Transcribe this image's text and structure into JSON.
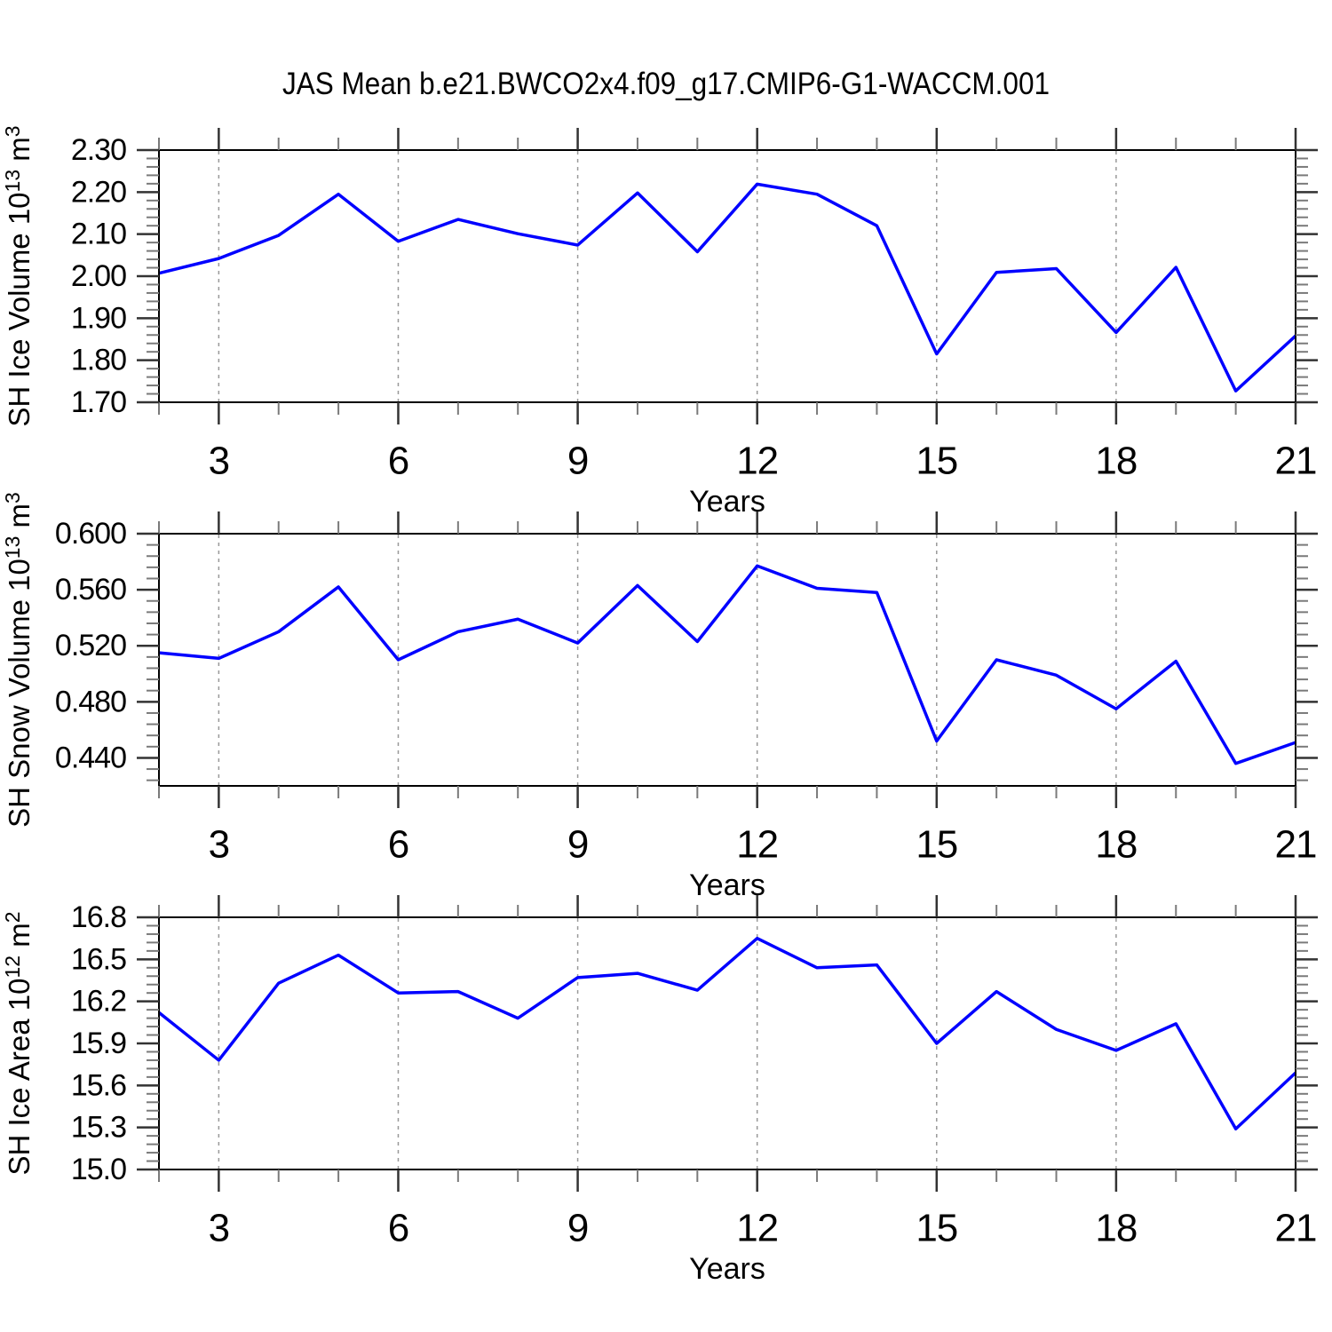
{
  "title": "JAS Mean b.e21.BWCO2x4.f09_g17.CMIP6-G1-WACCM.001",
  "line_color": "#0000ff",
  "years": [
    2,
    3,
    4,
    5,
    6,
    7,
    8,
    9,
    10,
    11,
    12,
    13,
    14,
    15,
    16,
    17,
    18,
    19,
    20,
    21
  ],
  "x_axis": {
    "label": "Years",
    "min": 2,
    "max": 21,
    "major_ticks": [
      3,
      6,
      9,
      12,
      15,
      18,
      21
    ]
  },
  "chart_data": [
    {
      "type": "line",
      "name": "sh-ice-volume",
      "ylabel_text": "SH Ice Volume 10^13 m^3",
      "ylabel": [
        {
          "t": "SH Ice Volume 10"
        },
        {
          "sup": "13"
        },
        {
          "t": " m"
        },
        {
          "sup": "3"
        }
      ],
      "xlabel": "Years",
      "ymin": 1.7,
      "ymax": 2.3,
      "yticks": [
        1.7,
        1.8,
        1.9,
        2.0,
        2.1,
        2.2,
        2.3
      ],
      "yminor_step": 0.02,
      "ydecimals": 2,
      "values": [
        2.007,
        2.042,
        2.097,
        2.195,
        2.083,
        2.135,
        2.101,
        2.074,
        2.198,
        2.058,
        2.219,
        2.195,
        2.12,
        1.815,
        2.009,
        2.018,
        1.866,
        2.021,
        1.727,
        1.858
      ]
    },
    {
      "type": "line",
      "name": "sh-snow-volume",
      "ylabel_text": "SH Snow Volume 10^13 m^3",
      "ylabel": [
        {
          "t": "SH Snow Volume 10"
        },
        {
          "sup": "13"
        },
        {
          "t": " m"
        },
        {
          "sup": "3"
        }
      ],
      "xlabel": "Years",
      "ymin": 0.42,
      "ymax": 0.6,
      "yticks": [
        0.44,
        0.48,
        0.52,
        0.56,
        0.6
      ],
      "yminor_step": 0.008,
      "ydecimals": 3,
      "values": [
        0.515,
        0.511,
        0.53,
        0.562,
        0.51,
        0.53,
        0.539,
        0.522,
        0.563,
        0.523,
        0.577,
        0.561,
        0.558,
        0.452,
        0.51,
        0.499,
        0.475,
        0.509,
        0.436,
        0.451
      ]
    },
    {
      "type": "line",
      "name": "sh-ice-area",
      "ylabel_text": "SH Ice Area 10^12 m^2",
      "ylabel": [
        {
          "t": "SH Ice Area 10"
        },
        {
          "sup": "12"
        },
        {
          "t": " m"
        },
        {
          "sup": "2"
        }
      ],
      "xlabel": "Years",
      "ymin": 15.0,
      "ymax": 16.8,
      "yticks": [
        15.0,
        15.3,
        15.6,
        15.9,
        16.2,
        16.5,
        16.8
      ],
      "yminor_step": 0.06,
      "ydecimals": 1,
      "values": [
        16.12,
        15.78,
        16.33,
        16.53,
        16.26,
        16.27,
        16.08,
        16.37,
        16.4,
        16.28,
        16.65,
        16.44,
        16.46,
        15.9,
        16.27,
        16.0,
        15.85,
        16.04,
        15.29,
        15.69
      ]
    }
  ]
}
